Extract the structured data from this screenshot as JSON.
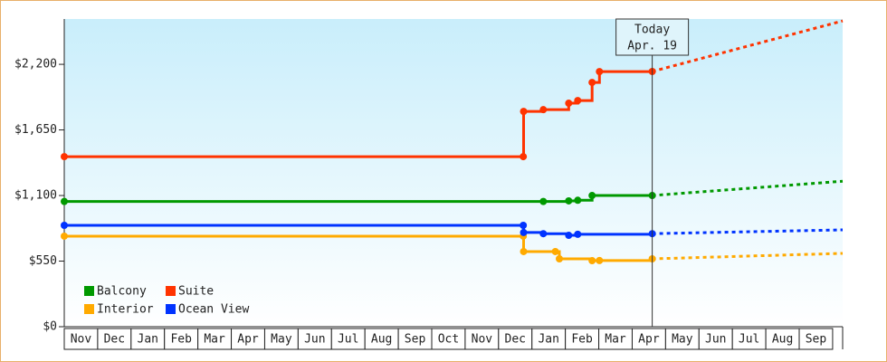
{
  "chart_data": {
    "type": "step-line",
    "annotation": {
      "title": "Today",
      "date": "Apr. 19",
      "x": 17.6
    },
    "xlim": [
      0,
      23.3
    ],
    "ylim": [
      0,
      2580
    ],
    "yticks": [
      {
        "value": 0,
        "label": "$0"
      },
      {
        "value": 550,
        "label": "$550"
      },
      {
        "value": 1100,
        "label": "$1,100"
      },
      {
        "value": 1650,
        "label": "$1,650"
      },
      {
        "value": 2200,
        "label": "$2,200"
      }
    ],
    "xticks": [
      {
        "value": 0,
        "label": "Nov"
      },
      {
        "value": 1,
        "label": "Dec"
      },
      {
        "value": 2,
        "label": "Jan"
      },
      {
        "value": 3,
        "label": "Feb"
      },
      {
        "value": 4,
        "label": "Mar"
      },
      {
        "value": 5,
        "label": "Apr"
      },
      {
        "value": 6,
        "label": "May"
      },
      {
        "value": 7,
        "label": "Jun"
      },
      {
        "value": 8,
        "label": "Jul"
      },
      {
        "value": 9,
        "label": "Aug"
      },
      {
        "value": 10,
        "label": "Sep"
      },
      {
        "value": 11,
        "label": "Oct"
      },
      {
        "value": 12,
        "label": "Nov"
      },
      {
        "value": 13,
        "label": "Dec"
      },
      {
        "value": 14,
        "label": "Jan"
      },
      {
        "value": 15,
        "label": "Feb"
      },
      {
        "value": 16,
        "label": "Mar"
      },
      {
        "value": 17,
        "label": "Apr"
      },
      {
        "value": 18,
        "label": "May"
      },
      {
        "value": 19,
        "label": "Jun"
      },
      {
        "value": 20,
        "label": "Jul"
      },
      {
        "value": 21,
        "label": "Aug"
      },
      {
        "value": 22,
        "label": "Sep"
      }
    ],
    "forecast_x": 23.3,
    "series": [
      {
        "name": "Balcony",
        "color": "#009900",
        "x": [
          0,
          14.34,
          15.1,
          15.37,
          15.8,
          17.6
        ],
        "values": [
          1050,
          1050,
          1055,
          1060,
          1100,
          1100
        ],
        "forecast_value": 1220
      },
      {
        "name": "Suite",
        "color": "#ff3300",
        "x": [
          0,
          13.74,
          13.75,
          14.34,
          15.1,
          15.37,
          15.8,
          16.02,
          17.6
        ],
        "values": [
          1426,
          1426,
          1805,
          1820,
          1874,
          1896,
          2048,
          2139,
          2140
        ],
        "forecast_value": 2564
      },
      {
        "name": "Interior",
        "color": "#ffaa00",
        "x": [
          0,
          13.74,
          13.75,
          14.7,
          14.82,
          15.8,
          16.02,
          17.6
        ],
        "values": [
          759,
          759,
          630,
          630,
          569,
          554,
          555,
          569
        ],
        "forecast_value": 615
      },
      {
        "name": "Ocean View",
        "color": "#0033ff",
        "x": [
          0,
          13.74,
          13.75,
          14.34,
          15.1,
          15.37,
          17.6
        ],
        "values": [
          850,
          850,
          790,
          780,
          766,
          775,
          780
        ],
        "forecast_value": 812
      }
    ]
  }
}
